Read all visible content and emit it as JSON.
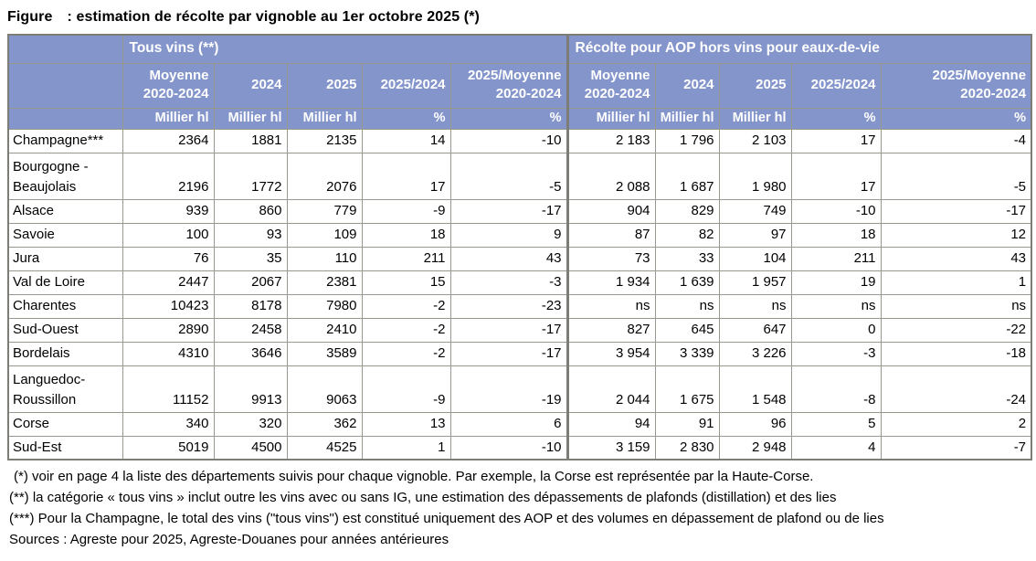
{
  "title": {
    "prefix": "Figure",
    "rest": ": estimation de récolte par vignoble au 1er octobre 2025 (*)"
  },
  "table": {
    "groups": [
      {
        "label": "Tous vins (**)"
      },
      {
        "label": "Récolte pour AOP hors vins pour eaux-de-vie"
      }
    ],
    "subheaders": [
      "Moyenne\n2020-2024",
      "2024",
      "2025",
      "2025/2024",
      "2025/Moyenne\n2020-2024"
    ],
    "units": [
      "Millier hl",
      "Millier hl",
      "Millier hl",
      "%",
      "%"
    ],
    "rows": [
      {
        "name": "Champagne***",
        "tous_vins": [
          "2364",
          "1881",
          "2135",
          "14",
          "-10"
        ],
        "aop": [
          "2 183",
          "1 796",
          "2 103",
          "17",
          "-4"
        ]
      },
      {
        "name": "Bourgogne -\nBeaujolais",
        "tous_vins": [
          "2196",
          "1772",
          "2076",
          "17",
          "-5"
        ],
        "aop": [
          "2 088",
          "1 687",
          "1 980",
          "17",
          "-5"
        ]
      },
      {
        "name": "Alsace",
        "tous_vins": [
          "939",
          "860",
          "779",
          "-9",
          "-17"
        ],
        "aop": [
          "904",
          "829",
          "749",
          "-10",
          "-17"
        ]
      },
      {
        "name": "Savoie",
        "tous_vins": [
          "100",
          "93",
          "109",
          "18",
          "9"
        ],
        "aop": [
          "87",
          "82",
          "97",
          "18",
          "12"
        ]
      },
      {
        "name": "Jura",
        "tous_vins": [
          "76",
          "35",
          "110",
          "211",
          "43"
        ],
        "aop": [
          "73",
          "33",
          "104",
          "211",
          "43"
        ]
      },
      {
        "name": "Val de Loire",
        "tous_vins": [
          "2447",
          "2067",
          "2381",
          "15",
          "-3"
        ],
        "aop": [
          "1 934",
          "1 639",
          "1 957",
          "19",
          "1"
        ]
      },
      {
        "name": "Charentes",
        "tous_vins": [
          "10423",
          "8178",
          "7980",
          "-2",
          "-23"
        ],
        "aop": [
          "ns",
          "ns",
          "ns",
          "ns",
          "ns"
        ]
      },
      {
        "name": "Sud-Ouest",
        "tous_vins": [
          "2890",
          "2458",
          "2410",
          "-2",
          "-17"
        ],
        "aop": [
          "827",
          "645",
          "647",
          "0",
          "-22"
        ]
      },
      {
        "name": "Bordelais",
        "tous_vins": [
          "4310",
          "3646",
          "3589",
          "-2",
          "-17"
        ],
        "aop": [
          "3 954",
          "3 339",
          "3 226",
          "-3",
          "-18"
        ]
      },
      {
        "name": "Languedoc-\nRoussillon",
        "tous_vins": [
          "11152",
          "9913",
          "9063",
          "-9",
          "-19"
        ],
        "aop": [
          "2 044",
          "1 675",
          "1 548",
          "-8",
          "-24"
        ]
      },
      {
        "name": "Corse",
        "tous_vins": [
          "340",
          "320",
          "362",
          "13",
          "6"
        ],
        "aop": [
          "94",
          "91",
          "96",
          "5",
          "2"
        ]
      },
      {
        "name": "Sud-Est",
        "tous_vins": [
          "5019",
          "4500",
          "4525",
          "1",
          "-10"
        ],
        "aop": [
          "3 159",
          "2 830",
          "2 948",
          "4",
          "-7"
        ]
      }
    ]
  },
  "footnotes": [
    "(*) voir en page 4 la liste des départements suivis pour chaque vignoble. Par exemple, la Corse est représentée par la Haute-Corse.",
    "(**) la catégorie « tous vins » inclut outre les vins avec ou sans IG, une estimation des dépassements de plafonds (distillation) et des lies",
    "(***) Pour la Champagne, le total des vins (\"tous vins\") est constitué uniquement des AOP et des volumes en dépassement de plafond ou de lies",
    "Sources : Agreste pour 2025, Agreste-Douanes pour années antérieures"
  ],
  "colors": {
    "header_background": "#8495cb",
    "header_text": "#ffffff",
    "grid_border": "#98988e",
    "outer_border": "#7d7d78",
    "body_text": "#000000"
  }
}
